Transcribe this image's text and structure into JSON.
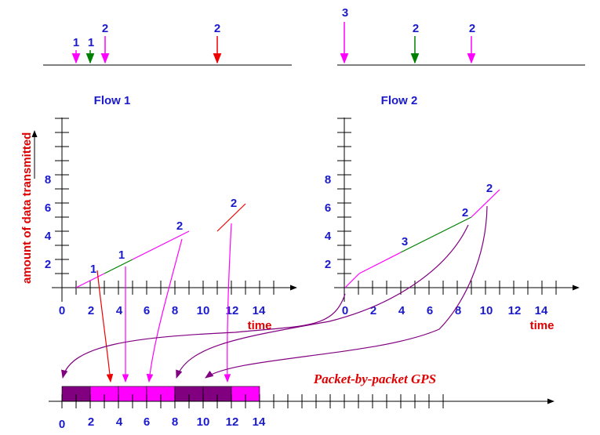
{
  "flow1": {
    "title": "Flow 1",
    "arrival_labels": [
      "1",
      "1",
      "2",
      "2"
    ],
    "arrival_colors": [
      "#ff00ff",
      "#008000",
      "#ff00ff",
      "#ee0000"
    ],
    "y_ticks": [
      "2",
      "4",
      "6",
      "8"
    ],
    "x_ticks": [
      "0",
      "2",
      "4",
      "6",
      "8",
      "10",
      "12",
      "14"
    ],
    "x_label": "time",
    "segment_labels": [
      "1",
      "1",
      "2",
      "2"
    ]
  },
  "flow2": {
    "title": "Flow 2",
    "arrival_labels": [
      "3",
      "2",
      "2"
    ],
    "arrival_colors": [
      "#ff00ff",
      "#008000",
      "#ff00ff"
    ],
    "y_ticks": [
      "2",
      "4",
      "6",
      "8"
    ],
    "x_ticks": [
      "0",
      "2",
      "4",
      "6",
      "8",
      "10",
      "12",
      "14"
    ],
    "x_label": "time",
    "segment_labels": [
      "3",
      "2",
      "2"
    ]
  },
  "y_axis_label": "amount of data transmitted",
  "gps": {
    "title": "Packet-by-packet GPS",
    "x_ticks": [
      "0",
      "2",
      "4",
      "6",
      "8",
      "10",
      "12",
      "14"
    ],
    "packet_colors": [
      "#800080",
      "#ff00ff",
      "#ff00ff",
      "#ff00ff",
      "#800080",
      "#800080",
      "#ff00ff"
    ]
  }
}
